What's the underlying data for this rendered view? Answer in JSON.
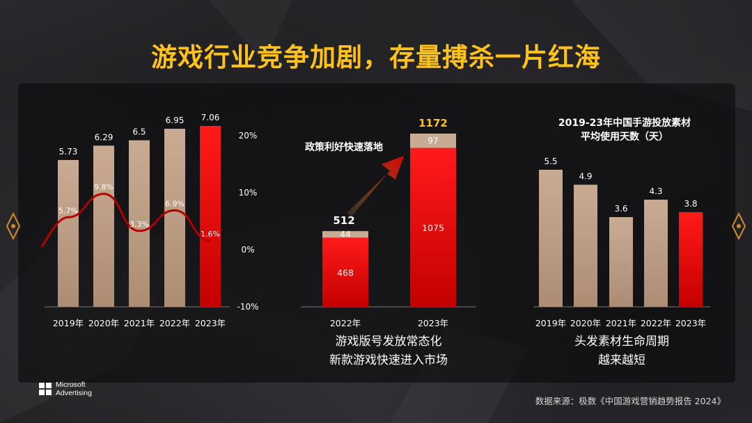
{
  "page": {
    "title": "游戏行业竞争加剧，存量搏杀一片红海",
    "source": "数据来源：极数《中国游戏营销趋势报告 2024》",
    "logo_line1": "Microsoft",
    "logo_line2": "Advertising"
  },
  "colors": {
    "tan_top": "#c9ab93",
    "tan_bottom": "#ac8d74",
    "red_top": "#ff1a1a",
    "red_bottom": "#c40000",
    "title": "#ffc21a",
    "line": "#b30000"
  },
  "chart_data": [
    {
      "type": "bar",
      "categories": [
        "2019年",
        "2020年",
        "2021年",
        "2022年",
        "2023年"
      ],
      "values": [
        5.73,
        6.29,
        6.5,
        6.95,
        7.06
      ],
      "value_labels": [
        "5.73",
        "6.29",
        "6.5",
        "6.95",
        "7.06"
      ],
      "highlight_index": 4,
      "ylim": [
        0,
        7.06
      ],
      "line_series": {
        "values": [
          5.7,
          9.8,
          3.3,
          6.9,
          1.6
        ],
        "labels": [
          "5.7%",
          "9.8%",
          "3.3%",
          "6.9%",
          "1.6%"
        ],
        "ylim": [
          -10,
          20
        ],
        "axis_ticks": [
          "20%",
          "10%",
          "0%",
          "-10%"
        ],
        "axis_tick_values": [
          20,
          10,
          0,
          -10
        ]
      }
    },
    {
      "type": "bar",
      "stacked": true,
      "categories": [
        "2022年",
        "2023年"
      ],
      "series": [
        {
          "name": "",
          "values": [
            468,
            1075
          ]
        },
        {
          "name": "",
          "values": [
            44,
            97
          ]
        }
      ],
      "series_labels": [
        [
          "468",
          "1075"
        ],
        [
          "44",
          "97"
        ]
      ],
      "totals": [
        512,
        1172
      ],
      "total_labels": [
        "512",
        "1172"
      ],
      "annotation": "政策利好快速落地",
      "caption_lines": [
        "游戏版号发放常态化",
        "新款游戏快速进入市场"
      ]
    },
    {
      "type": "bar",
      "title_lines": [
        "2019-23年中国手游投放素材",
        "平均使用天数（天）"
      ],
      "categories": [
        "2019年",
        "2020年",
        "2021年",
        "2022年",
        "2023年"
      ],
      "values": [
        5.5,
        4.9,
        3.6,
        4.3,
        3.8
      ],
      "value_labels": [
        "5.5",
        "4.9",
        "3.6",
        "4.3",
        "3.8"
      ],
      "highlight_index": 4,
      "ylim": [
        0,
        5.5
      ],
      "caption_lines": [
        "头发素材生命周期",
        "越来越短"
      ]
    }
  ]
}
